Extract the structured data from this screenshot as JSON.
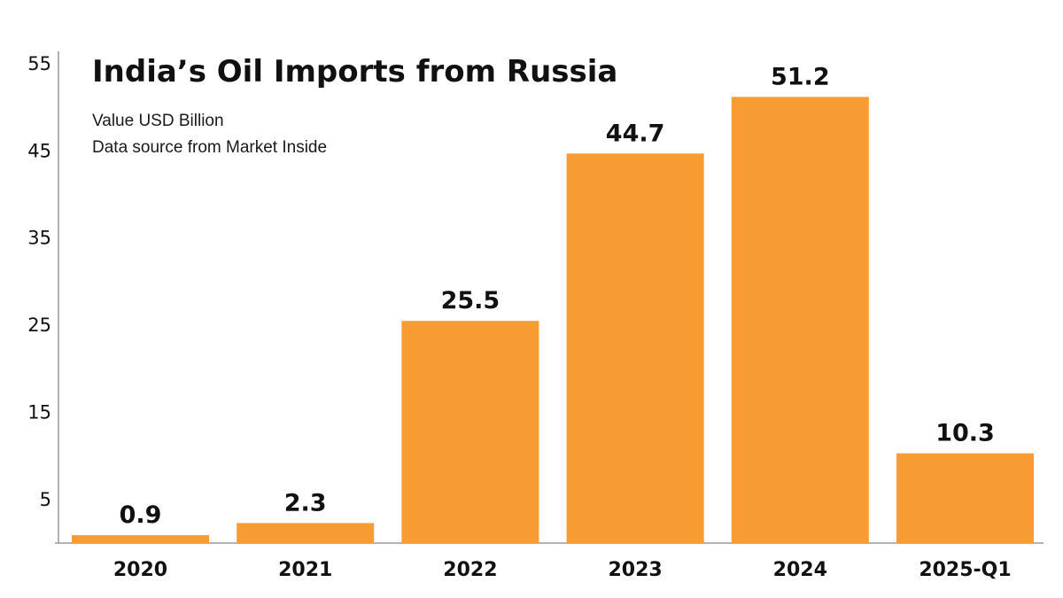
{
  "chart_data": {
    "type": "bar",
    "title": "India’s Oil Imports from Russia",
    "subtitle_lines": [
      "Value USD Billion",
      "Data source from Market Inside"
    ],
    "categories": [
      "2020",
      "2021",
      "2022",
      "2023",
      "2024",
      "2025-Q1"
    ],
    "values": [
      0.9,
      2.3,
      25.5,
      44.7,
      51.2,
      10.3
    ],
    "data_labels": [
      "0.9",
      "2.3",
      "25.5",
      "44.7",
      "51.2",
      "10.3"
    ],
    "y_ticks": [
      "5",
      "15",
      "25",
      "35",
      "45",
      "55"
    ],
    "ylim": [
      0,
      55
    ],
    "xlabel": "",
    "ylabel": "",
    "grid": false,
    "legend": "none",
    "bar_color": "#F79B33"
  }
}
